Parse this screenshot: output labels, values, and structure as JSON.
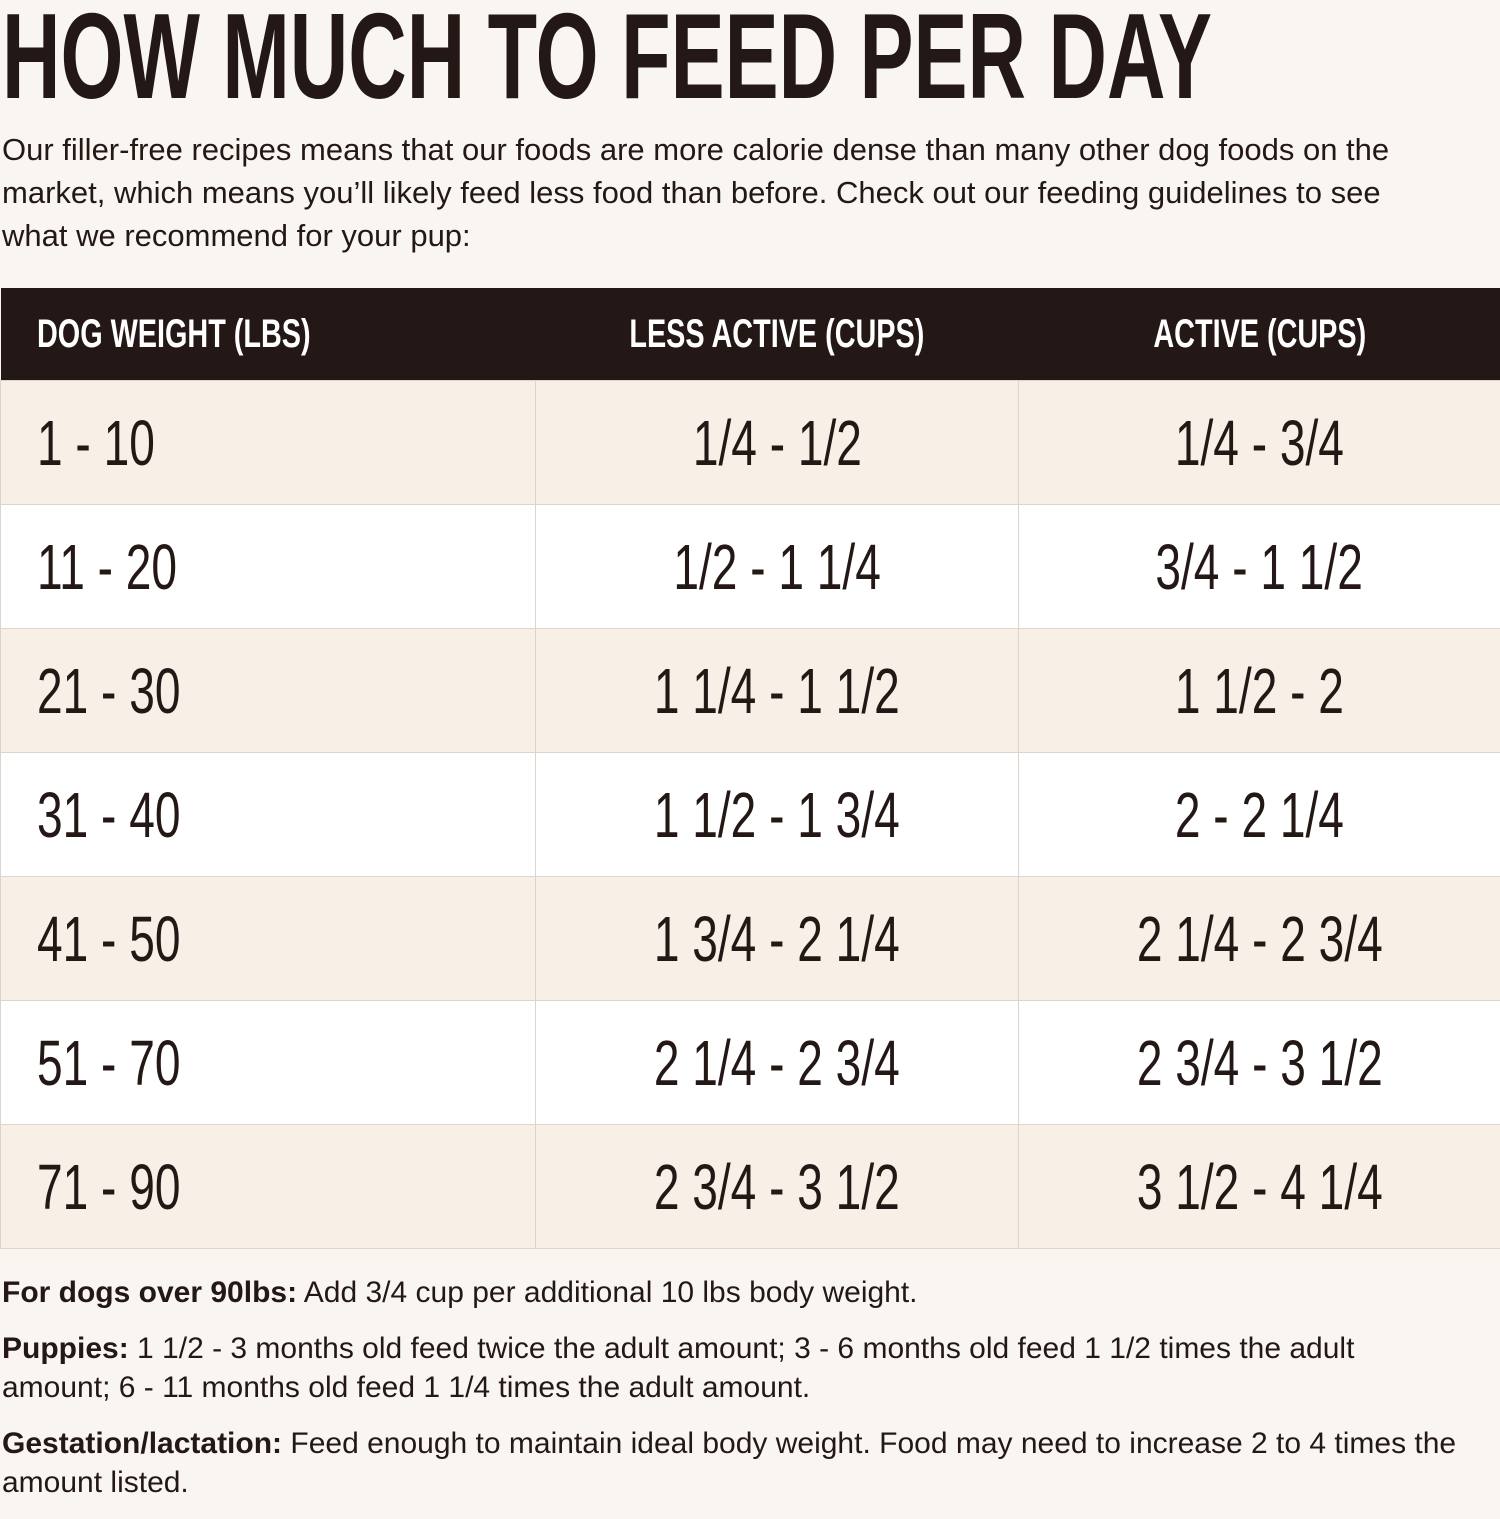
{
  "header": {
    "title": "HOW MUCH TO FEED PER DAY",
    "intro": "Our filler-free recipes means that our foods are more calorie dense than many other dog foods on the market, which means you’ll likely feed less food than before. Check out our feeding guidelines to see what we recommend for your pup:"
  },
  "table": {
    "columns": [
      "DOG WEIGHT (LBS)",
      "LESS ACTIVE (CUPS)",
      "ACTIVE (CUPS)"
    ],
    "rows": [
      [
        "1 - 10",
        "1/4 - 1/2",
        "1/4 - 3/4"
      ],
      [
        "11 - 20",
        "1/2 - 1 1/4",
        "3/4 - 1 1/2"
      ],
      [
        "21 - 30",
        "1 1/4 - 1 1/2",
        "1 1/2 - 2"
      ],
      [
        "31 - 40",
        "1 1/2 - 1 3/4",
        "2 - 2 1/4"
      ],
      [
        "41 - 50",
        "1 3/4 - 2 1/4",
        "2 1/4 - 2 3/4"
      ],
      [
        "51 - 70",
        "2 1/4 - 2 3/4",
        "2 3/4 - 3 1/2"
      ],
      [
        "71 - 90",
        "2 3/4 - 3 1/2",
        "3 1/2 - 4 1/4"
      ]
    ]
  },
  "notes": [
    {
      "label": "For dogs over 90lbs:",
      "text": "Add 3/4 cup per additional 10 lbs body weight."
    },
    {
      "label": "Puppies:",
      "text": "1 1/2 - 3 months old feed twice the adult amount; 3 - 6 months old feed 1 1/2 times the adult amount; 6 - 11 months old feed 1 1/4 times the adult amount."
    },
    {
      "label": "Gestation/lactation:",
      "text": "Feed enough to maintain ideal body weight. Food may need to increase 2 to 4 times the amount listed."
    }
  ]
}
